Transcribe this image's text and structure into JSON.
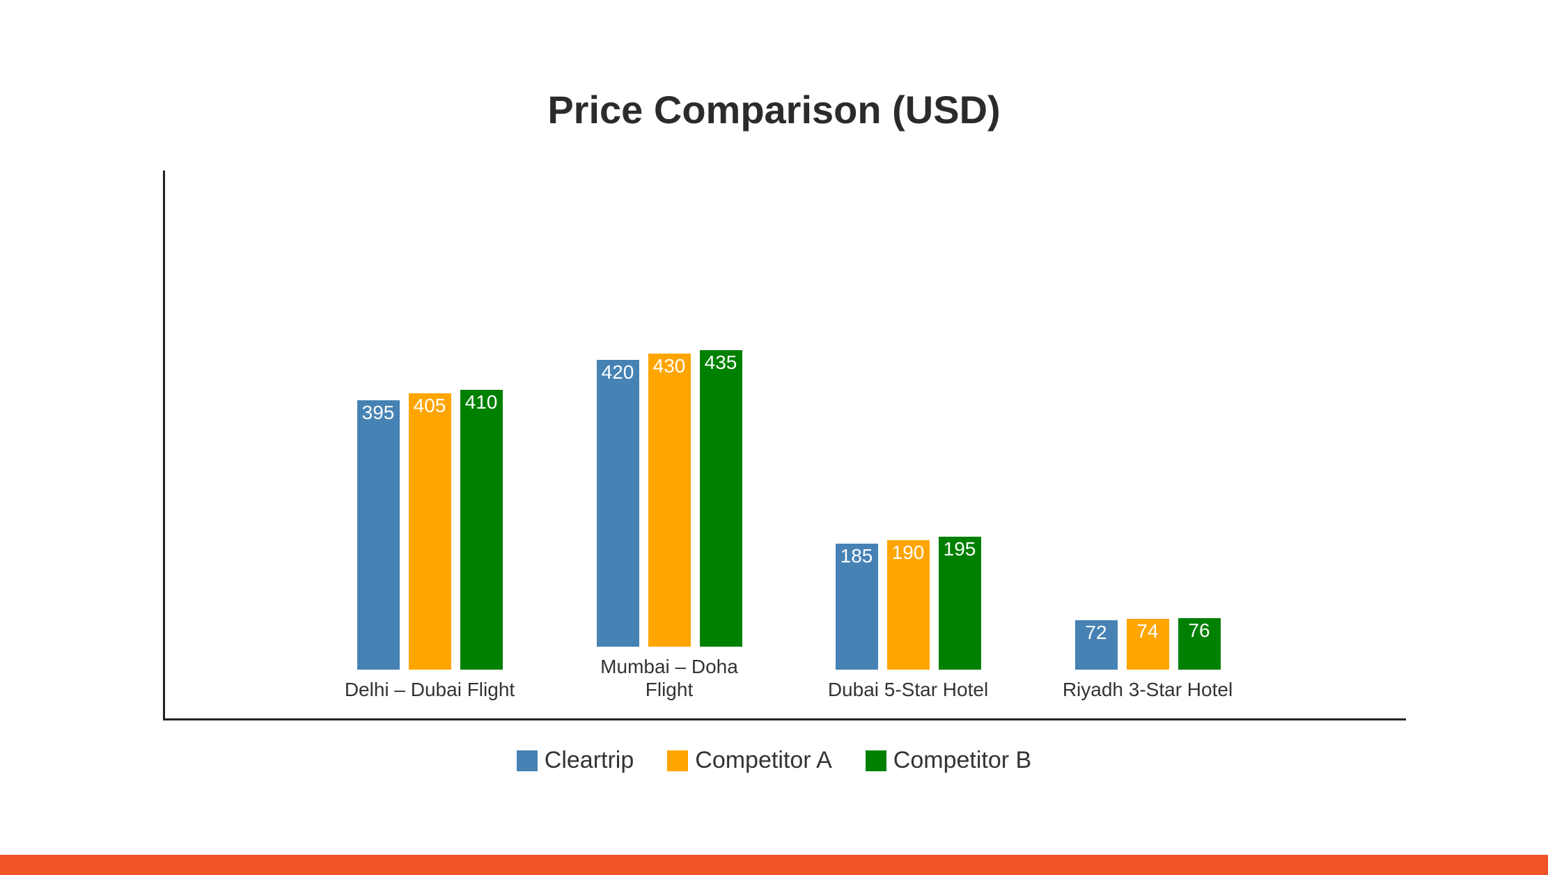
{
  "chart_data": {
    "type": "bar",
    "title": "Price Comparison (USD)",
    "categories": [
      "Delhi – Dubai Flight",
      "Mumbai – Doha Flight",
      "Dubai 5-Star Hotel",
      "Riyadh 3-Star Hotel"
    ],
    "series": [
      {
        "name": "Cleartrip",
        "color": "#4682b4",
        "values": [
          395,
          420,
          185,
          72
        ]
      },
      {
        "name": "Competitor A",
        "color": "#ffa500",
        "values": [
          405,
          430,
          190,
          74
        ]
      },
      {
        "name": "Competitor B",
        "color": "#008000",
        "values": [
          410,
          435,
          195,
          76
        ]
      }
    ]
  }
}
